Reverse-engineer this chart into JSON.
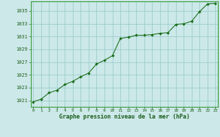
{
  "x": [
    0,
    1,
    2,
    3,
    4,
    5,
    6,
    7,
    8,
    9,
    10,
    11,
    12,
    13,
    14,
    15,
    16,
    17,
    18,
    19,
    20,
    21,
    22,
    23
  ],
  "y": [
    1020.8,
    1021.2,
    1022.2,
    1022.6,
    1023.5,
    1024.0,
    1024.7,
    1025.3,
    1026.7,
    1027.3,
    1028.0,
    1030.7,
    1030.9,
    1031.2,
    1031.2,
    1031.3,
    1031.5,
    1031.6,
    1032.9,
    1033.0,
    1033.4,
    1034.9,
    1036.1,
    1036.2
  ],
  "line_color": "#1a6e1a",
  "marker_color": "#1a6e1a",
  "bg_color": "#cce8e8",
  "grid_color": "#99cccc",
  "border_color": "#339933",
  "xlabel": "Graphe pression niveau de la mer (hPa)",
  "xlabel_color": "#1a5c1a",
  "tick_color": "#1a5c1a",
  "ylim_min": 1020.0,
  "ylim_max": 1036.5,
  "xlim_min": 0,
  "xlim_max": 23,
  "yticks": [
    1021,
    1023,
    1025,
    1027,
    1029,
    1031,
    1033,
    1035
  ],
  "xticks": [
    0,
    1,
    2,
    3,
    4,
    5,
    6,
    7,
    8,
    9,
    10,
    11,
    12,
    13,
    14,
    15,
    16,
    17,
    18,
    19,
    20,
    21,
    22,
    23
  ]
}
